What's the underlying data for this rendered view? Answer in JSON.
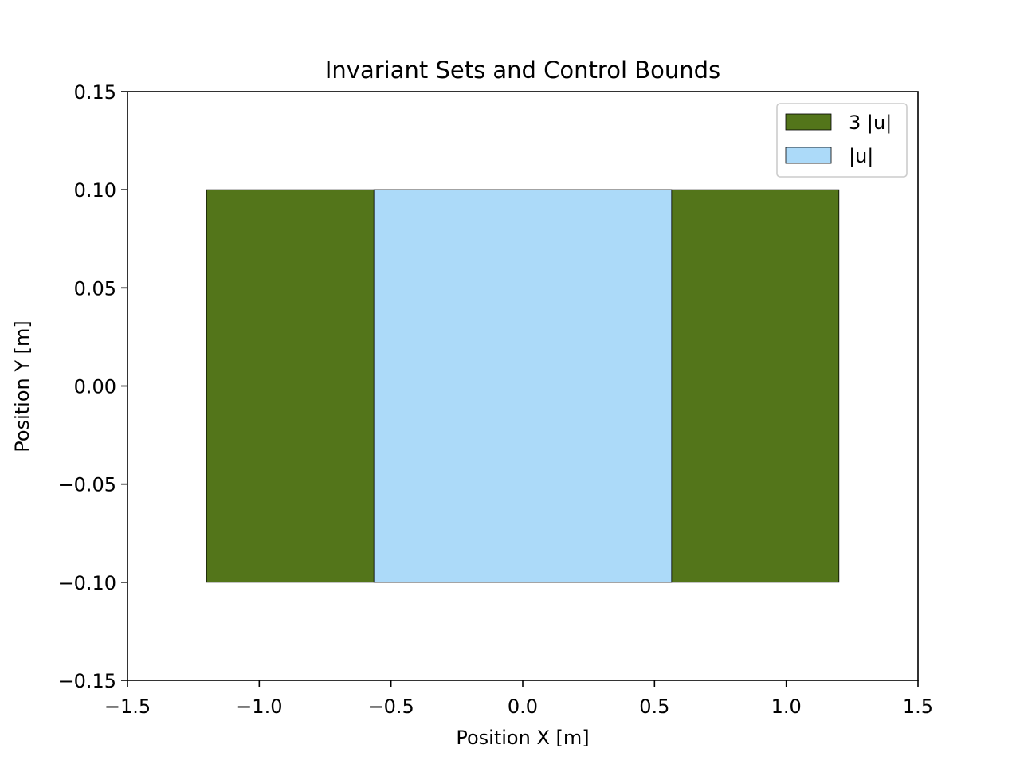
{
  "chart_data": {
    "type": "area",
    "title": "Invariant Sets and Control Bounds",
    "xlabel": "Position X [m]",
    "ylabel": "Position Y [m]",
    "xlim": [
      -1.5,
      1.5
    ],
    "ylim": [
      -0.15,
      0.15
    ],
    "x_ticks": [
      -1.5,
      -1.0,
      -0.5,
      0.0,
      0.5,
      1.0,
      1.5
    ],
    "x_tick_labels": [
      "−1.5",
      "−1.0",
      "−0.5",
      "0.0",
      "0.5",
      "1.0",
      "1.5"
    ],
    "y_ticks": [
      0.15,
      0.1,
      0.05,
      0.0,
      -0.05,
      -0.1,
      -0.15
    ],
    "y_tick_labels": [
      "0.15",
      "0.10",
      "0.05",
      "0.00",
      "−0.05",
      "−0.10",
      "−0.15"
    ],
    "grid": false,
    "legend_position": "top-right",
    "series": [
      {
        "name": "3 |u|",
        "color": "#53751a",
        "rect": {
          "x": [
            -1.2,
            1.2
          ],
          "y": [
            -0.1,
            0.1
          ]
        }
      },
      {
        "name": "|u|",
        "color": "#acdaf9",
        "rect": {
          "x": [
            -0.565,
            0.565
          ],
          "y": [
            -0.1,
            0.1
          ]
        }
      }
    ]
  }
}
